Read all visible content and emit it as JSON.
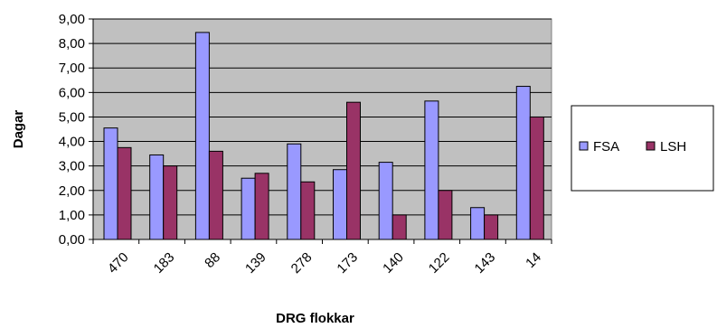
{
  "chart_data": {
    "type": "bar",
    "title": "",
    "xlabel": "DRG flokkar",
    "ylabel": "Dagar",
    "categories": [
      "470",
      "183",
      "88",
      "139",
      "278",
      "173",
      "140",
      "122",
      "143",
      "14"
    ],
    "series": [
      {
        "name": "FSA",
        "color": "#9999ff",
        "values": [
          4.55,
          3.45,
          8.45,
          2.5,
          3.9,
          2.85,
          3.15,
          5.65,
          1.3,
          6.25
        ]
      },
      {
        "name": "LSH",
        "color": "#993366",
        "values": [
          3.75,
          3.0,
          3.6,
          2.7,
          2.35,
          5.6,
          1.0,
          2.0,
          1.0,
          5.0
        ]
      }
    ],
    "ylim": [
      0,
      9
    ],
    "ytick_values": [
      0,
      1,
      2,
      3,
      4,
      5,
      6,
      7,
      8,
      9
    ],
    "ytick_labels": [
      "0,00",
      "1,00",
      "2,00",
      "3,00",
      "4,00",
      "5,00",
      "6,00",
      "7,00",
      "8,00",
      "9,00"
    ],
    "grid": true,
    "plot_background": "#c0c0c0",
    "legend_position": "right"
  }
}
